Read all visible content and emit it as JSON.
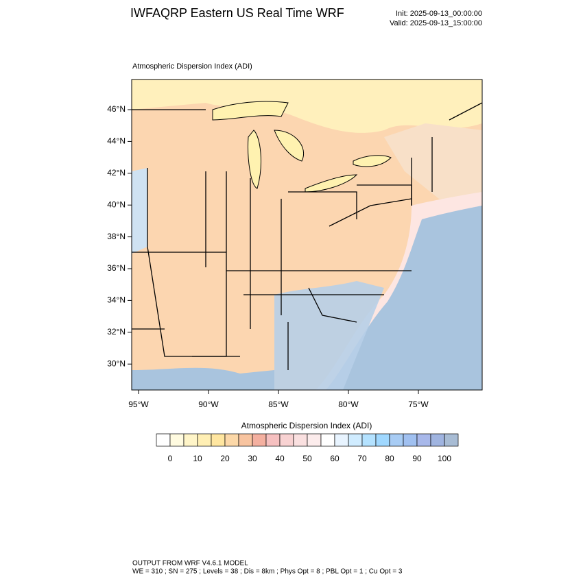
{
  "header": {
    "title": "IWFAQRP Eastern US Real Time WRF",
    "init": "Init: 2025-09-13_00:00:00",
    "valid": "Valid: 2025-09-13_15:00:00"
  },
  "map": {
    "title": "Atmospheric Dispersion Index   (ADI)",
    "lat_labels": [
      "46°N",
      "44°N",
      "42°N",
      "40°N",
      "38°N",
      "36°N",
      "34°N",
      "32°N",
      "30°N"
    ],
    "lon_labels": [
      "95°W",
      "90°W",
      "85°W",
      "80°W",
      "75°W"
    ]
  },
  "colorbar": {
    "title": "Atmospheric Dispersion Index  (ADI)",
    "labels": [
      "0",
      "10",
      "20",
      "30",
      "40",
      "50",
      "60",
      "70",
      "80",
      "90",
      "100"
    ],
    "colors": [
      "#ffffff",
      "#fffbe0",
      "#fff5c8",
      "#ffefb4",
      "#ffe6a0",
      "#fcd8a8",
      "#f8c4a0",
      "#f4b0a0",
      "#f6c0c0",
      "#f8d2d2",
      "#fae0e0",
      "#fcecec",
      "#ffffff",
      "#e8f4ff",
      "#d0ecff",
      "#b4e2ff",
      "#a0d8ff",
      "#a8ccf4",
      "#a0c0f0",
      "#a8b8ea",
      "#a0b4e0",
      "#a8bcd4"
    ]
  },
  "footer": {
    "line1": "OUTPUT FROM WRF V4.6.1 MODEL",
    "line2": "WE = 310 ; SN = 275 ; Levels = 38 ; Dis = 8km ; Phys Opt = 8 ; PBL Opt = 1 ; Cu Opt = 3"
  }
}
